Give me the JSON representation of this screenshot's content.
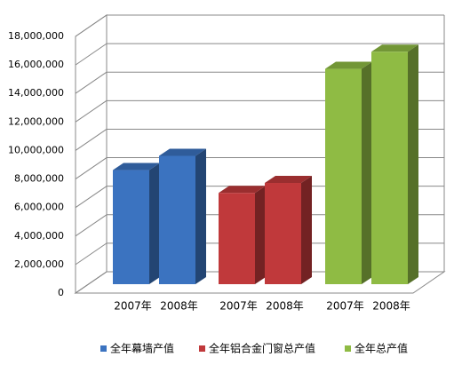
{
  "chart_data": {
    "type": "bar3d",
    "categories": [
      "2007年",
      "2008年",
      "2007年",
      "2008年",
      "2007年",
      "2008年"
    ],
    "series": [
      {
        "name": "全年幕墙产值",
        "color": "#3b73c0",
        "values": [
          8000000,
          9000000,
          null,
          null,
          null,
          null
        ]
      },
      {
        "name": "全年铝合金门窗总产值",
        "color": "#c0393b",
        "values": [
          null,
          null,
          6400000,
          7100000,
          null,
          null
        ]
      },
      {
        "name": "全年总产值",
        "color": "#8fbb44",
        "values": [
          null,
          null,
          null,
          null,
          15100000,
          16300000
        ]
      }
    ],
    "ylim": [
      0,
      18000000
    ],
    "yticks": [
      {
        "value": 0,
        "label": "0"
      },
      {
        "value": 2000000,
        "label": "2,000,000"
      },
      {
        "value": 4000000,
        "label": "4,000,000"
      },
      {
        "value": 6000000,
        "label": "6,000,000"
      },
      {
        "value": 8000000,
        "label": "8,000,000"
      },
      {
        "value": 10000000,
        "label": "10,000,000"
      },
      {
        "value": 12000000,
        "label": "12,000,000"
      },
      {
        "value": 14000000,
        "label": "14,000,000"
      },
      {
        "value": 16000000,
        "label": "16,000,000"
      },
      {
        "value": 18000000,
        "label": "18,000,000"
      }
    ],
    "grid": true,
    "legend": "bottom"
  }
}
